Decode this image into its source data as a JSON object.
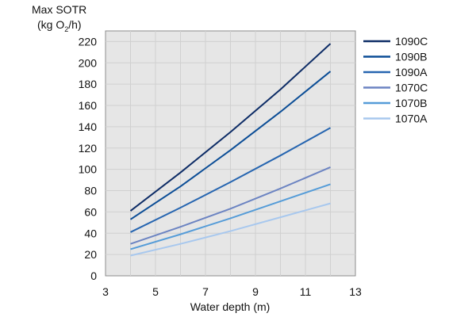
{
  "chart_data": {
    "type": "line",
    "title": "",
    "ylabel_line1": "Max SOTR",
    "ylabel_line2_pre": "(kg O",
    "ylabel_line2_sub": "2",
    "ylabel_line2_post": "/h)",
    "xlabel": "Water depth (m)",
    "xlim": [
      3,
      13
    ],
    "ylim": [
      0,
      230
    ],
    "xticks": [
      3,
      5,
      7,
      9,
      11,
      13
    ],
    "yticks": [
      0,
      20,
      40,
      60,
      80,
      100,
      120,
      140,
      160,
      180,
      200,
      220
    ],
    "grid": true,
    "legend_position": "right",
    "x": [
      4,
      6,
      8,
      10,
      12
    ],
    "series": [
      {
        "name": "1090C",
        "color": "#0d2c66",
        "values": [
          61,
          97,
          135,
          175,
          218
        ]
      },
      {
        "name": "1090B",
        "color": "#0b4d96",
        "values": [
          53,
          84,
          118,
          154,
          192
        ]
      },
      {
        "name": "1090A",
        "color": "#2665b0",
        "values": [
          41,
          64,
          88,
          113,
          139
        ]
      },
      {
        "name": "1070C",
        "color": "#6c84c2",
        "values": [
          30,
          46,
          63,
          82,
          102
        ]
      },
      {
        "name": "1070B",
        "color": "#559cd8",
        "values": [
          25,
          39,
          54,
          70,
          86
        ]
      },
      {
        "name": "1070A",
        "color": "#a8c8ee",
        "values": [
          19,
          30,
          42,
          55,
          68
        ]
      }
    ]
  }
}
